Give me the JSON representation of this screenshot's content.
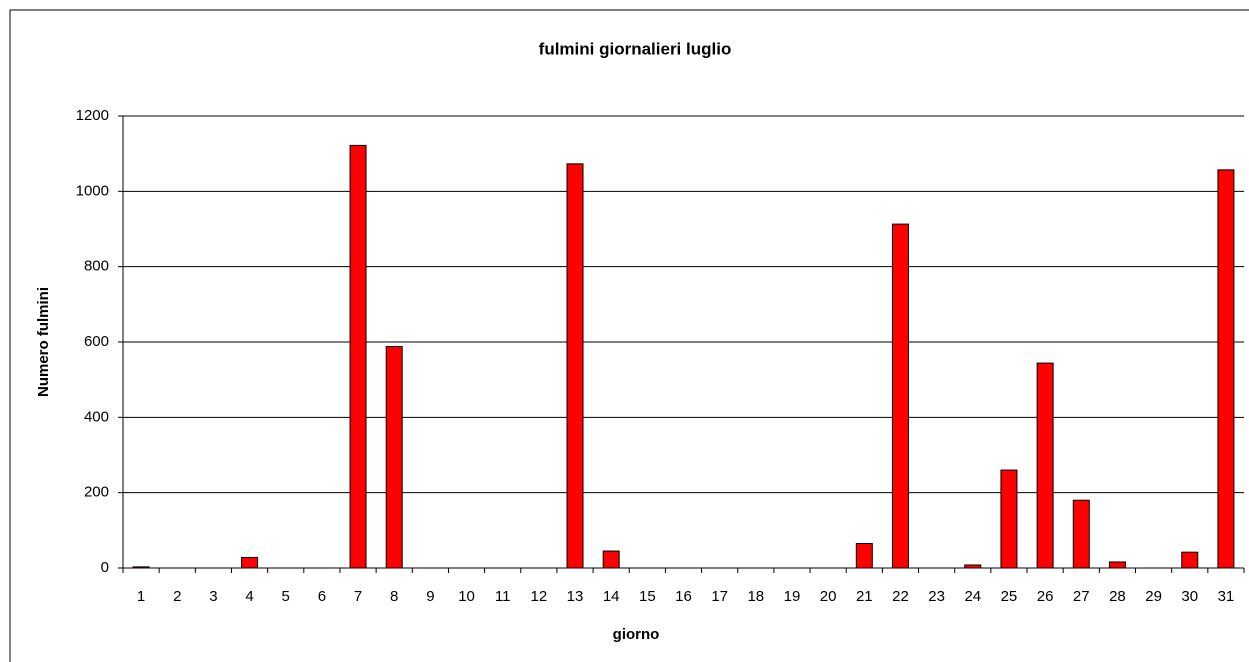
{
  "chart_data": {
    "type": "bar",
    "title": "fulmini giornalieri luglio",
    "x_label": "giorno",
    "y_label": "Numero fulmini",
    "categories": [
      "1",
      "2",
      "3",
      "4",
      "5",
      "6",
      "7",
      "8",
      "9",
      "10",
      "11",
      "12",
      "13",
      "14",
      "15",
      "16",
      "17",
      "18",
      "19",
      "20",
      "21",
      "22",
      "23",
      "24",
      "25",
      "26",
      "27",
      "28",
      "29",
      "30",
      "31"
    ],
    "values": [
      3,
      0,
      0,
      28,
      0,
      0,
      1122,
      588,
      0,
      0,
      0,
      0,
      1073,
      45,
      0,
      0,
      0,
      0,
      0,
      0,
      65,
      913,
      0,
      8,
      260,
      544,
      180,
      16,
      0,
      42,
      1057
    ],
    "color": "#ff0000",
    "ylim": [
      0,
      1200
    ],
    "yticks": [
      0,
      200,
      400,
      600,
      800,
      1000,
      1200
    ],
    "grid": true
  }
}
